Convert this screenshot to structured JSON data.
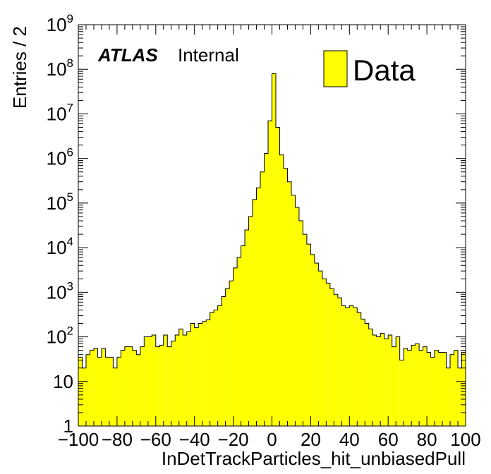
{
  "chart_data": {
    "type": "bar",
    "xlabel": "InDetTrackParticles_hit_unbiasedPull",
    "ylabel": "Entries / 2",
    "xlim": [
      -100,
      100
    ],
    "ylim": [
      1,
      1000000000
    ],
    "y_log_scale": true,
    "x_ticks": [
      "−100",
      "−80",
      "−60",
      "−40",
      "−20",
      "0",
      "20",
      "40",
      "60",
      "80",
      "100"
    ],
    "y_ticks": [
      {
        "value": 1,
        "base": "1",
        "exp": ""
      },
      {
        "value": 10,
        "base": "10",
        "exp": ""
      },
      {
        "value": 100,
        "base": "10",
        "exp": "2"
      },
      {
        "value": 1000,
        "base": "10",
        "exp": "3"
      },
      {
        "value": 10000,
        "base": "10",
        "exp": "4"
      },
      {
        "value": 100000,
        "base": "10",
        "exp": "5"
      },
      {
        "value": 1000000,
        "base": "10",
        "exp": "6"
      },
      {
        "value": 10000000,
        "base": "10",
        "exp": "7"
      },
      {
        "value": 100000000,
        "base": "10",
        "exp": "8"
      },
      {
        "value": 1000000000,
        "base": "10",
        "exp": "9"
      }
    ],
    "bin_width": 2,
    "fill_color": "#ffff00",
    "grid": false,
    "legend_position": "top-right",
    "series": [
      {
        "name": "Data",
        "x_low_edges": [
          -100,
          -98,
          -96,
          -94,
          -92,
          -90,
          -88,
          -86,
          -84,
          -82,
          -80,
          -78,
          -76,
          -74,
          -72,
          -70,
          -68,
          -66,
          -64,
          -62,
          -60,
          -58,
          -56,
          -54,
          -52,
          -50,
          -48,
          -46,
          -44,
          -42,
          -40,
          -38,
          -36,
          -34,
          -32,
          -30,
          -28,
          -26,
          -24,
          -22,
          -20,
          -18,
          -16,
          -14,
          -12,
          -10,
          -8,
          -6,
          -4,
          -2,
          0,
          2,
          4,
          6,
          8,
          10,
          12,
          14,
          16,
          18,
          20,
          22,
          24,
          26,
          28,
          30,
          32,
          34,
          36,
          38,
          40,
          42,
          44,
          46,
          48,
          50,
          52,
          54,
          56,
          58,
          60,
          62,
          64,
          66,
          68,
          70,
          72,
          74,
          76,
          78,
          80,
          82,
          84,
          86,
          88,
          90,
          92,
          94,
          96,
          98
        ],
        "values": [
          35,
          20,
          40,
          50,
          55,
          35,
          55,
          35,
          35,
          20,
          35,
          50,
          60,
          60,
          50,
          40,
          60,
          100,
          100,
          110,
          60,
          65,
          110,
          60,
          80,
          110,
          150,
          110,
          130,
          200,
          160,
          200,
          220,
          240,
          350,
          400,
          500,
          800,
          1200,
          1800,
          3500,
          6000,
          11000,
          25000,
          50000,
          120000,
          220000,
          500000,
          1300000,
          7000000,
          80000000,
          5000000,
          1200000,
          600000,
          300000,
          150000,
          80000,
          40000,
          20000,
          12000,
          7000,
          4500,
          3000,
          2000,
          1600,
          1200,
          900,
          750,
          500,
          450,
          500,
          450,
          350,
          250,
          200,
          150,
          110,
          100,
          120,
          90,
          110,
          60,
          100,
          30,
          55,
          50,
          65,
          70,
          50,
          60,
          45,
          35,
          50,
          45,
          45,
          20,
          40,
          50,
          20,
          45,
          30,
          25
        ]
      }
    ],
    "atlas_label": "ATLAS",
    "atlas_sublabel": "Internal",
    "legend_label": "Data"
  }
}
